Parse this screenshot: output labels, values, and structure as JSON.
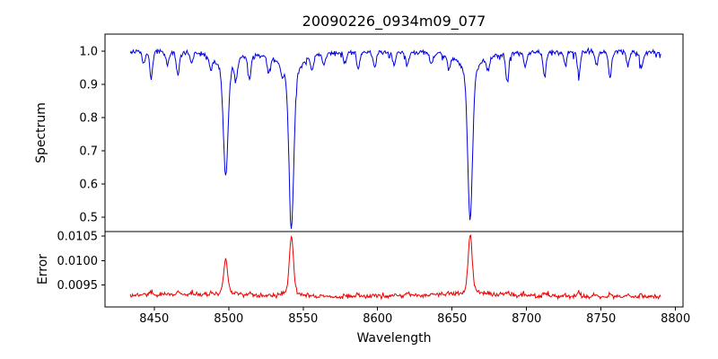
{
  "chart_data": {
    "type": "line",
    "title": "20090226_0934m09_077",
    "xlabel": "Wavelength",
    "background": "#ffffff",
    "axis_color": "#000000",
    "x_ticks": [
      8450,
      8500,
      8550,
      8600,
      8650,
      8700,
      8750,
      8800
    ],
    "x_range": [
      8417,
      8805
    ],
    "x_data_range": [
      8434,
      8790
    ],
    "subplots": [
      {
        "ylabel": "Spectrum",
        "color": "#0000dd",
        "ylim": [
          0.457,
          1.051
        ],
        "y_ticks": [
          1.0,
          0.9,
          0.8,
          0.7,
          0.6,
          0.5
        ],
        "y_tick_labels": [
          "1.0",
          "0.9",
          "0.8",
          "0.7",
          "0.6",
          "0.5"
        ],
        "continuum": 0.997,
        "noise_sigma": 0.0035,
        "major_lines": [
          [
            8498.0,
            0.37
          ],
          [
            8542.1,
            0.53
          ],
          [
            8662.1,
            0.5
          ]
        ],
        "minor_lines": [
          [
            8443,
            0.04
          ],
          [
            8448,
            0.08
          ],
          [
            8459,
            0.04
          ],
          [
            8466,
            0.07
          ],
          [
            8475,
            0.03
          ],
          [
            8488,
            0.04
          ],
          [
            8505,
            0.05
          ],
          [
            8514,
            0.07
          ],
          [
            8527,
            0.04
          ],
          [
            8536,
            0.03
          ],
          [
            8556,
            0.04
          ],
          [
            8564,
            0.03
          ],
          [
            8578,
            0.03
          ],
          [
            8587,
            0.05
          ],
          [
            8598,
            0.05
          ],
          [
            8611,
            0.04
          ],
          [
            8620,
            0.04
          ],
          [
            8636,
            0.03
          ],
          [
            8648,
            0.04
          ],
          [
            8674,
            0.04
          ],
          [
            8687,
            0.08
          ],
          [
            8699,
            0.04
          ],
          [
            8712,
            0.07
          ],
          [
            8726,
            0.04
          ],
          [
            8735,
            0.07
          ],
          [
            8747,
            0.04
          ],
          [
            8756,
            0.08
          ],
          [
            8768,
            0.04
          ],
          [
            8777,
            0.05
          ]
        ]
      },
      {
        "ylabel": "Error",
        "color": "#ee0000",
        "ylim": [
          0.009056,
          0.010593
        ],
        "y_ticks": [
          0.0095,
          0.01,
          0.0105
        ],
        "y_tick_labels": [
          "0.0095",
          "0.0100",
          "0.0105"
        ],
        "baseline": 0.00928,
        "noise_sigma": 2e-05,
        "major_peaks": [
          [
            8498.0,
            0.00072
          ],
          [
            8542.1,
            0.00125
          ],
          [
            8662.1,
            0.00122
          ]
        ],
        "minor_peak_scale": 0.0009
      }
    ]
  }
}
